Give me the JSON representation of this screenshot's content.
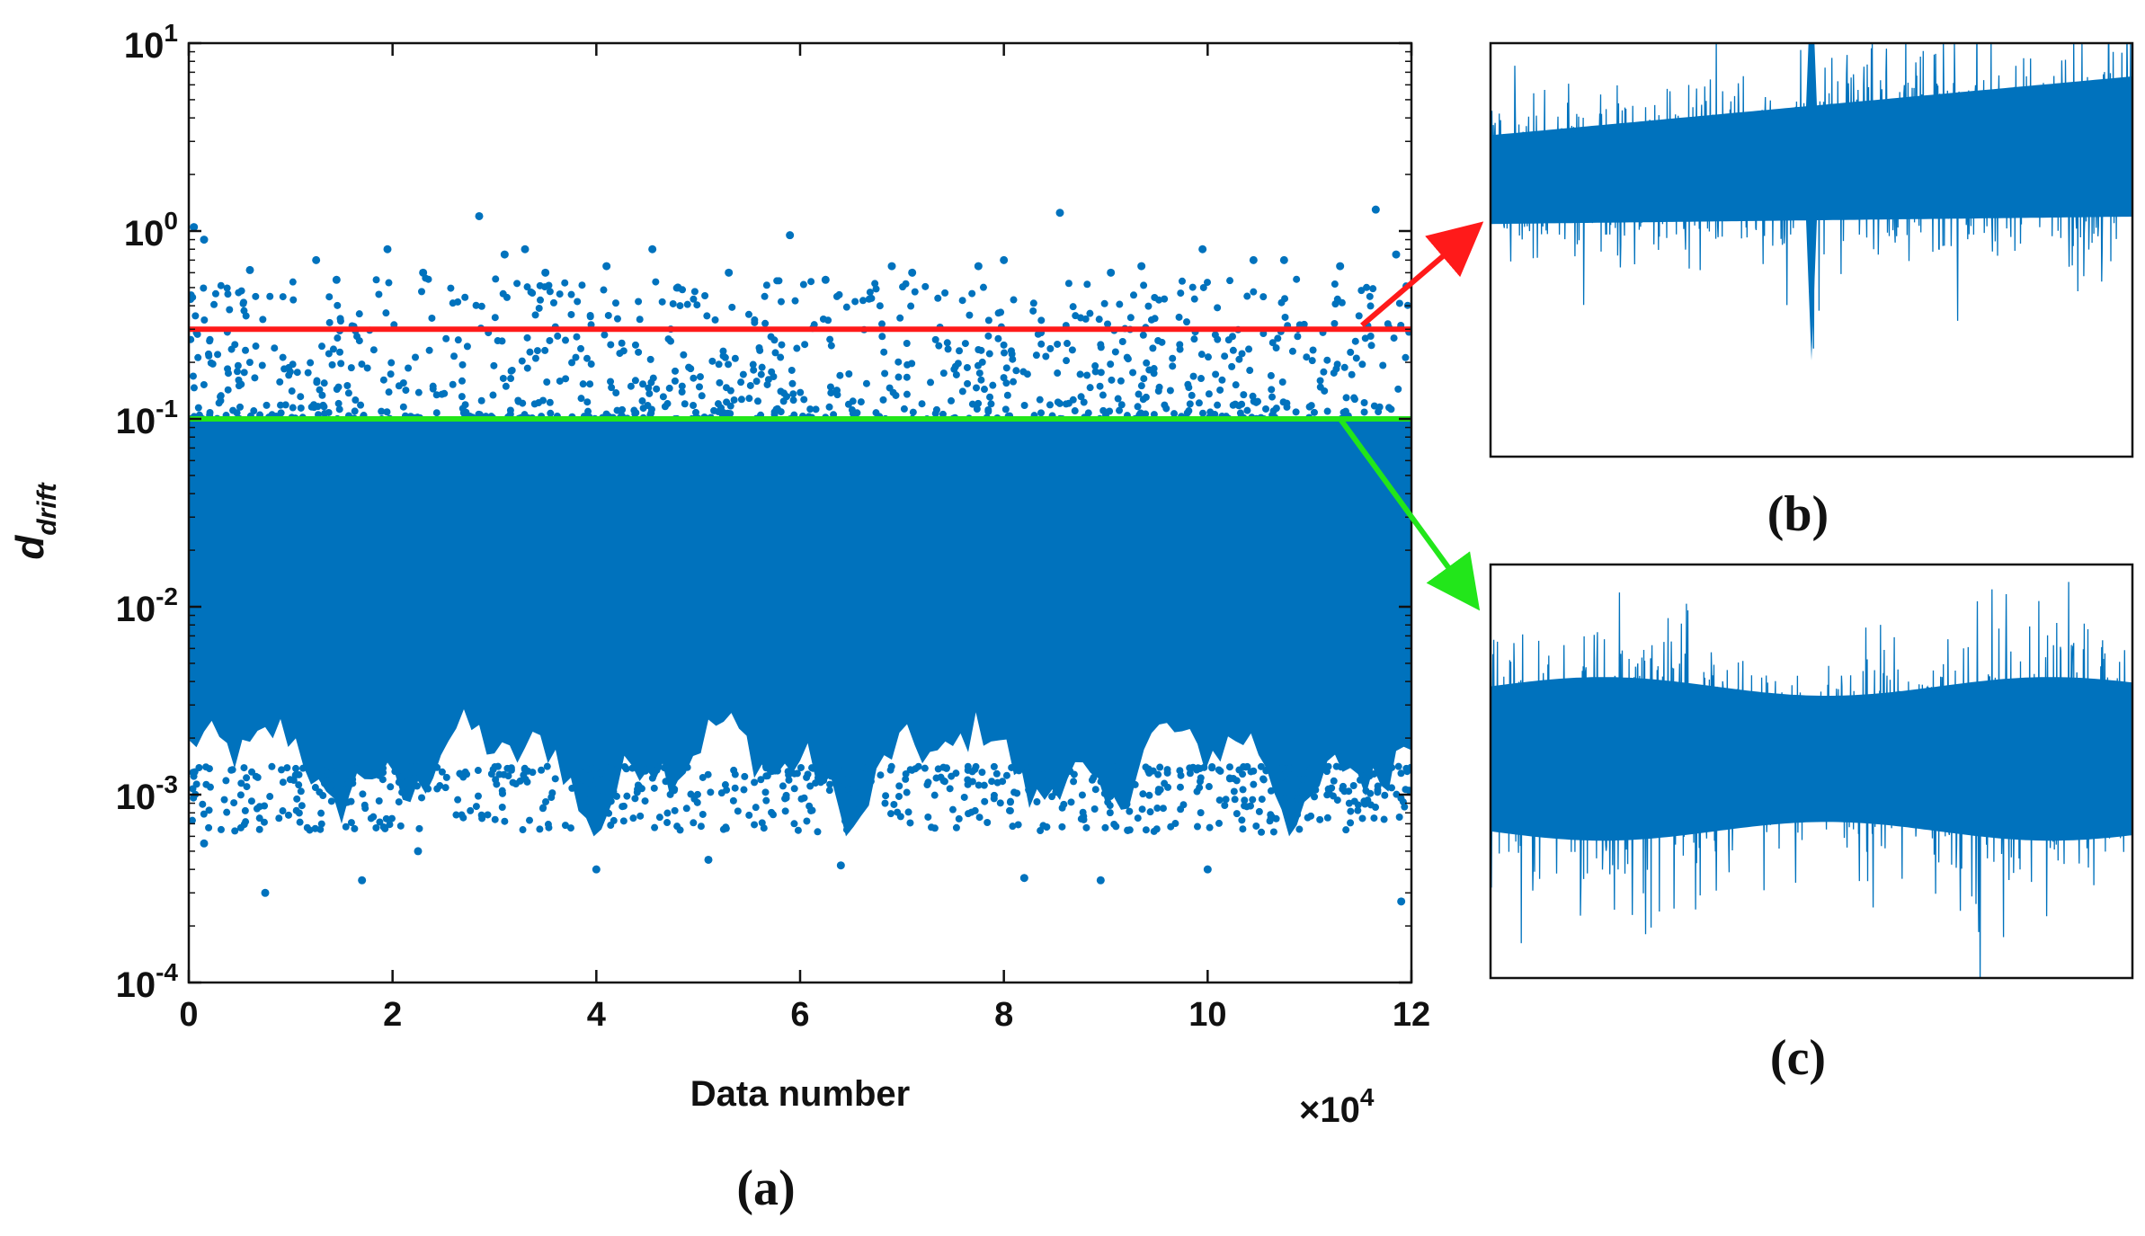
{
  "figure": {
    "panel_labels": {
      "a": "(a)",
      "b": "(b)",
      "c": "(c)"
    }
  },
  "colors": {
    "scatter": "#0072bd",
    "upper_threshold": "#ff1a1a",
    "lower_threshold": "#22e61a",
    "axis": "#111111"
  },
  "chart_data": [
    {
      "id": "a",
      "type": "scatter",
      "title": "",
      "xlabel": "Data number",
      "ylabel_main": "d",
      "ylabel_sub": "drift",
      "x_multiplier": {
        "base": "×10",
        "exp": "4"
      },
      "yscale": "log",
      "xlim": [
        0,
        12
      ],
      "ylim": [
        0.0001,
        10
      ],
      "grid": false,
      "xticks": [
        0,
        2,
        4,
        6,
        8,
        10,
        12
      ],
      "xtick_labels": [
        "0",
        "2",
        "4",
        "6",
        "8",
        "10",
        "12"
      ],
      "yticks": [
        0.0001,
        0.001,
        0.01,
        0.1,
        1,
        10
      ],
      "ytick_labels": [
        {
          "base": "10",
          "exp": "-4"
        },
        {
          "base": "10",
          "exp": "-3"
        },
        {
          "base": "10",
          "exp": "-2"
        },
        {
          "base": "10",
          "exp": "-1"
        },
        {
          "base": "10",
          "exp": "0"
        },
        {
          "base": "10",
          "exp": "1"
        }
      ],
      "thresholds": [
        {
          "name": "upper-threshold",
          "value": 0.3,
          "color": "#ff1a1a"
        },
        {
          "name": "lower-threshold",
          "value": 0.1,
          "color": "#22e61a"
        }
      ],
      "band": {
        "x_range": [
          0,
          12
        ],
        "upper": 0.1,
        "lower_base": 0.0015
      },
      "outliers_high": [
        {
          "x": 0.05,
          "y": 1.05
        },
        {
          "x": 0.15,
          "y": 0.9
        },
        {
          "x": 0.6,
          "y": 0.62
        },
        {
          "x": 1.25,
          "y": 0.7
        },
        {
          "x": 1.45,
          "y": 0.55
        },
        {
          "x": 1.95,
          "y": 0.8
        },
        {
          "x": 2.3,
          "y": 0.6
        },
        {
          "x": 2.85,
          "y": 1.2
        },
        {
          "x": 3.1,
          "y": 0.75
        },
        {
          "x": 3.3,
          "y": 0.8
        },
        {
          "x": 3.5,
          "y": 0.6
        },
        {
          "x": 4.1,
          "y": 0.65
        },
        {
          "x": 4.55,
          "y": 0.8
        },
        {
          "x": 4.8,
          "y": 0.5
        },
        {
          "x": 5.3,
          "y": 0.6
        },
        {
          "x": 5.9,
          "y": 0.95
        },
        {
          "x": 6.25,
          "y": 0.55
        },
        {
          "x": 6.9,
          "y": 0.65
        },
        {
          "x": 7.1,
          "y": 0.6
        },
        {
          "x": 7.75,
          "y": 0.65
        },
        {
          "x": 8.0,
          "y": 0.7
        },
        {
          "x": 8.55,
          "y": 1.25
        },
        {
          "x": 9.05,
          "y": 0.6
        },
        {
          "x": 9.35,
          "y": 0.65
        },
        {
          "x": 9.95,
          "y": 0.8
        },
        {
          "x": 10.45,
          "y": 0.7
        },
        {
          "x": 10.75,
          "y": 0.7
        },
        {
          "x": 11.3,
          "y": 0.65
        },
        {
          "x": 11.65,
          "y": 1.3
        },
        {
          "x": 11.85,
          "y": 0.75
        }
      ],
      "outliers_low": [
        {
          "x": 0.15,
          "y": 0.00055
        },
        {
          "x": 0.75,
          "y": 0.0003
        },
        {
          "x": 1.7,
          "y": 0.00035
        },
        {
          "x": 2.25,
          "y": 0.0005
        },
        {
          "x": 4.0,
          "y": 0.0004
        },
        {
          "x": 5.1,
          "y": 0.00045
        },
        {
          "x": 6.4,
          "y": 0.00042
        },
        {
          "x": 8.2,
          "y": 0.00036
        },
        {
          "x": 8.95,
          "y": 0.00035
        },
        {
          "x": 10.0,
          "y": 0.0004
        },
        {
          "x": 11.9,
          "y": 0.00027
        }
      ]
    },
    {
      "id": "b",
      "type": "line",
      "title": "",
      "description_series": "high-drift signal (above upper threshold)",
      "trend": "increasing",
      "spikes_at_fraction": [
        0.5
      ]
    },
    {
      "id": "c",
      "type": "line",
      "title": "",
      "description_series": "normal signal (below lower threshold)",
      "trend": "flat"
    }
  ]
}
